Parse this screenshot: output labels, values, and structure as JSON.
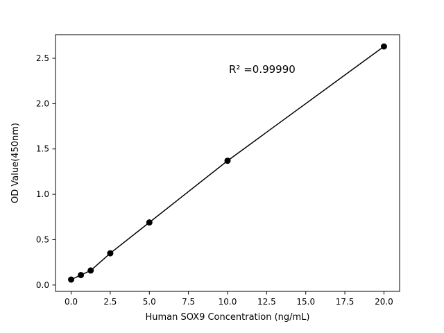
{
  "chart_data": {
    "type": "scatter",
    "title": "",
    "xlabel": "Human SOX9 Concentration (ng/mL)",
    "ylabel": "OD Value(450nm)",
    "annotation": "R² =0.99990",
    "x": [
      0,
      0.625,
      1.25,
      2.5,
      5,
      10,
      20
    ],
    "y": [
      0.06,
      0.11,
      0.16,
      0.35,
      0.69,
      1.37,
      2.63
    ],
    "xlim": [
      -1,
      21
    ],
    "ylim": [
      -0.07,
      2.76
    ],
    "x_ticks": [
      0.0,
      2.5,
      5.0,
      7.5,
      10.0,
      12.5,
      15.0,
      17.5,
      20.0
    ],
    "x_tick_labels": [
      "0.0",
      "2.5",
      "5.0",
      "7.5",
      "10.0",
      "12.5",
      "15.0",
      "17.5",
      "20.0"
    ],
    "y_ticks": [
      0.0,
      0.5,
      1.0,
      1.5,
      2.0,
      2.5
    ],
    "y_tick_labels": [
      "0.0",
      "0.5",
      "1.0",
      "1.5",
      "2.0",
      "2.5"
    ],
    "line_color": "#000000",
    "marker_color": "#000000",
    "spine_color": "#000000",
    "background_color": "#ffffff",
    "grid": "off",
    "legend": "none",
    "marker_style": "filled-circle"
  }
}
